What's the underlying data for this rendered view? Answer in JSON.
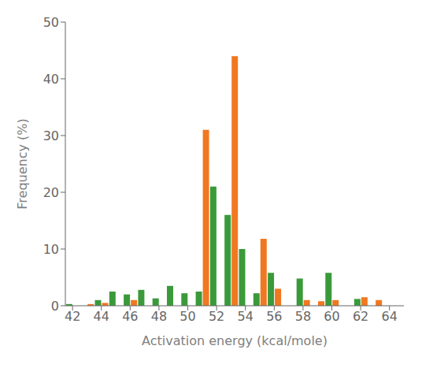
{
  "chart_data": {
    "type": "bar",
    "xlabel": "Activation energy (kcal/mole)",
    "ylabel": "Frequency (%)",
    "x": [
      42,
      43,
      44,
      45,
      46,
      47,
      48,
      49,
      50,
      51,
      52,
      53,
      54,
      55,
      56,
      57,
      58,
      59,
      60,
      61,
      62,
      63
    ],
    "series": [
      {
        "color": "#3a9a3a",
        "values": [
          0.3,
          0.0,
          1.0,
          2.5,
          2.0,
          2.8,
          1.3,
          3.5,
          2.2,
          2.5,
          21.0,
          16.0,
          10.0,
          2.2,
          5.8,
          0.0,
          4.8,
          0.0,
          5.8,
          0.0,
          1.2,
          0.0
        ]
      },
      {
        "color": "#f07820",
        "values": [
          0.0,
          0.3,
          0.5,
          0.0,
          1.0,
          0.0,
          0.0,
          0.0,
          0.0,
          31.0,
          0.0,
          44.0,
          0.0,
          11.8,
          3.0,
          0.0,
          1.0,
          0.8,
          1.0,
          0.0,
          1.5,
          1.0
        ]
      }
    ],
    "xlim": [
      41.5,
      65.0
    ],
    "xticks": [
      42,
      44,
      46,
      48,
      50,
      52,
      54,
      56,
      58,
      60,
      62,
      64
    ],
    "ylim": [
      0,
      50
    ],
    "yticks": [
      0,
      10,
      20,
      30,
      40,
      50
    ],
    "grid": false
  }
}
